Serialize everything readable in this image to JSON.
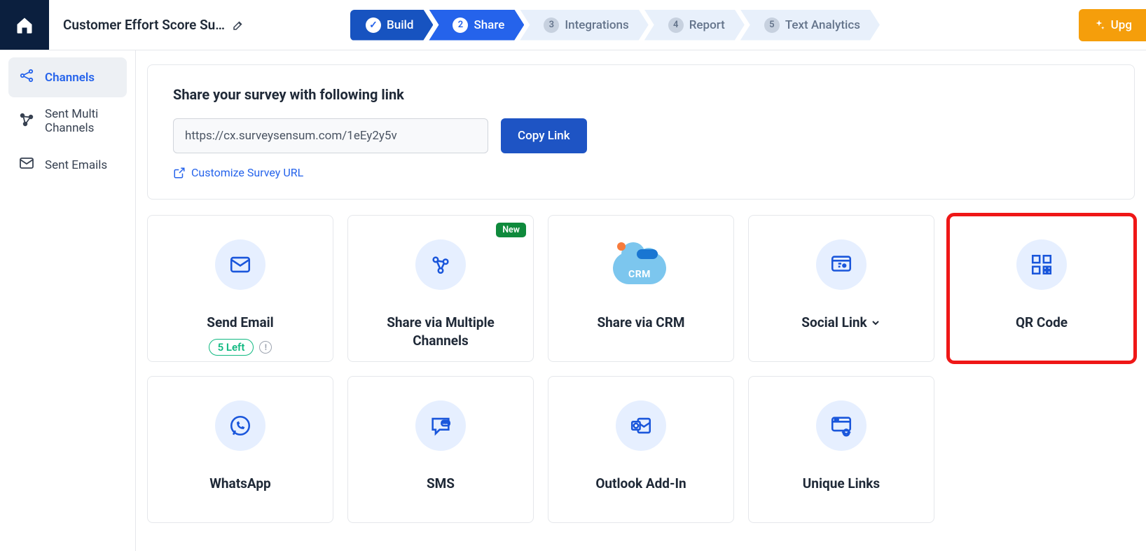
{
  "colors": {
    "primary": "#2563eb",
    "primary_dark": "#1753c0",
    "accent": "#f59e0b",
    "border": "#e5e7eb",
    "text": "#1f2937",
    "icon_bg": "#e6efff",
    "icon_stroke": "#1a56db",
    "pill_green": "#10b981",
    "badge_green": "#0f8a3c",
    "highlight_red": "#ef1717"
  },
  "header": {
    "survey_title": "Customer Effort Score Su…",
    "wizard": [
      {
        "num": "✓",
        "label": "Build",
        "state": "done"
      },
      {
        "num": "2",
        "label": "Share",
        "state": "active"
      },
      {
        "num": "3",
        "label": "Integrations",
        "state": "idle"
      },
      {
        "num": "4",
        "label": "Report",
        "state": "idle"
      },
      {
        "num": "5",
        "label": "Text Analytics",
        "state": "idle"
      }
    ],
    "upgrade_label": "Upg"
  },
  "sidebar": {
    "items": [
      {
        "icon": "share",
        "label": "Channels",
        "active": true
      },
      {
        "icon": "multi",
        "label": "Sent Multi Channels",
        "active": false
      },
      {
        "icon": "mail",
        "label": "Sent Emails",
        "active": false
      }
    ]
  },
  "share": {
    "heading": "Share your survey with following link",
    "url": "https://cx.surveysensum.com/1eEy2y5v",
    "copy_label": "Copy Link",
    "customize_label": "Customize Survey URL"
  },
  "cards": [
    {
      "icon": "mail",
      "title": "Send Email",
      "pill": "5 Left",
      "info": true
    },
    {
      "icon": "multi",
      "title": "Share via Multiple Channels",
      "badge": "New"
    },
    {
      "icon": "crm",
      "title": "Share via CRM",
      "crm_text": "CRM"
    },
    {
      "icon": "social",
      "title": "Social Link",
      "chevron": true
    },
    {
      "icon": "qr",
      "title": "QR Code",
      "highlight": true
    },
    {
      "icon": "whatsapp",
      "title": "WhatsApp"
    },
    {
      "icon": "sms",
      "title": "SMS"
    },
    {
      "icon": "outlook",
      "title": "Outlook Add-In"
    },
    {
      "icon": "unique",
      "title": "Unique Links"
    }
  ]
}
